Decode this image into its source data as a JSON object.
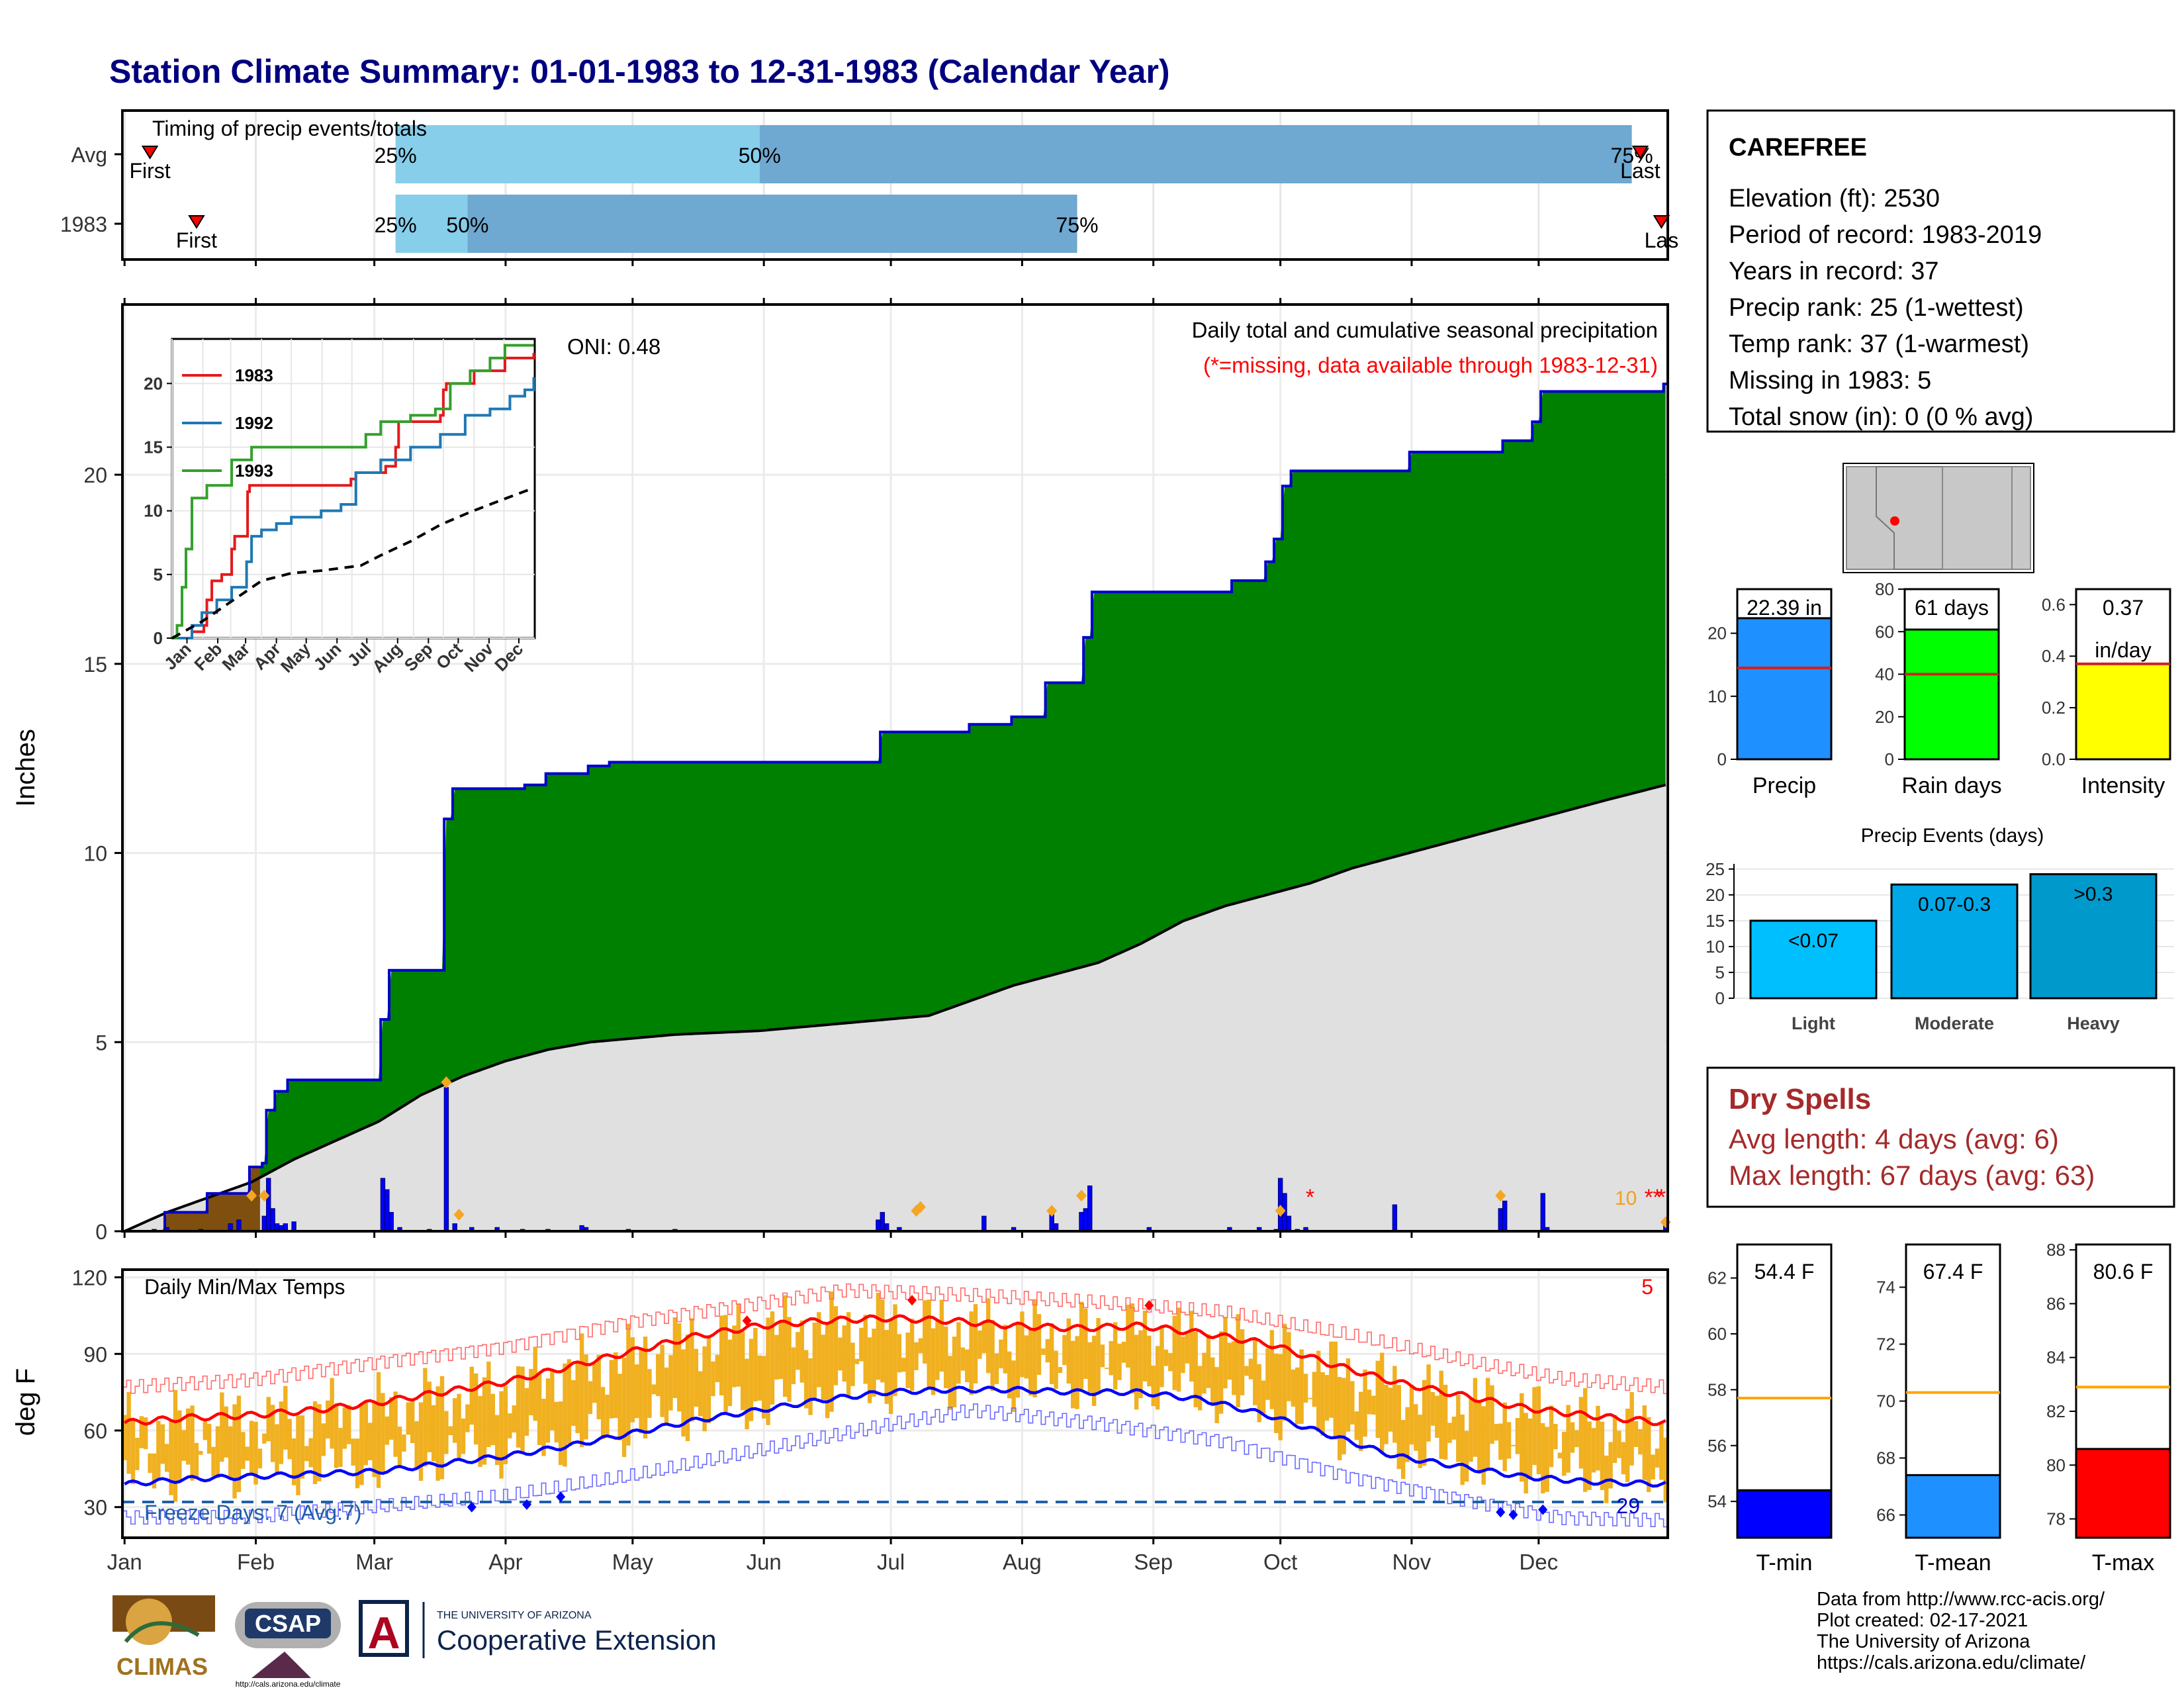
{
  "title": "Station Climate Summary: 01-01-1983 to 12-31-1983 (Calendar Year)",
  "colors": {
    "title": "#00007f",
    "green": "#008000",
    "brown": "#7f4f0f",
    "blue_bar": "#0000ff",
    "gray": "#e0e0e0",
    "orange": "#f0b020",
    "red": "#ff0000",
    "navy": "#0000cc",
    "light_blue": "#87ceeb",
    "steel_blue": "#6fa8d0",
    "dry_red": "#a52a2a"
  },
  "months": [
    "Jan",
    "Feb",
    "Mar",
    "Apr",
    "May",
    "Jun",
    "Jul",
    "Aug",
    "Sep",
    "Oct",
    "Nov",
    "Dec"
  ],
  "timing": {
    "title": "Timing of precip events/totals",
    "rows": [
      {
        "label": "Avg",
        "first_label": "First",
        "last_label": "Last",
        "first_doy": 6,
        "last_doy": 358,
        "q25_label": "25%",
        "q50_label": "50%",
        "q75_label": "75%",
        "q25": 64,
        "q50": 150,
        "q75": 356
      },
      {
        "label": "1983",
        "first_label": "First",
        "last_label": "Las",
        "first_doy": 17,
        "last_doy": 363,
        "q25_label": "25%",
        "q50_label": "50%",
        "q75_label": "75%",
        "q25": 64,
        "q50": 81,
        "q75": 225
      }
    ]
  },
  "precip": {
    "ylabel": "Inches",
    "yticks": [
      0,
      5,
      10,
      15,
      20
    ],
    "ylim": [
      0,
      24.5
    ],
    "subtitle": "Daily total and cumulative seasonal precipitation",
    "missing_note": "(*=missing, data available through 1983-12-31)",
    "oni_label": "ONI: 0.48",
    "missing_count_label": "10",
    "cumulative_1983": [
      [
        0,
        0
      ],
      [
        10,
        0.5
      ],
      [
        20,
        1
      ],
      [
        30,
        1.7
      ],
      [
        33,
        1.8
      ],
      [
        34,
        3.2
      ],
      [
        36,
        3.7
      ],
      [
        39,
        4
      ],
      [
        60,
        4
      ],
      [
        61,
        5.6
      ],
      [
        63,
        6.9
      ],
      [
        75,
        6.9
      ],
      [
        76,
        10.9
      ],
      [
        78,
        11.7
      ],
      [
        95,
        11.8
      ],
      [
        100,
        12.1
      ],
      [
        110,
        12.3
      ],
      [
        115,
        12.4
      ],
      [
        177,
        12.4
      ],
      [
        179,
        13.2
      ],
      [
        195,
        13.2
      ],
      [
        200,
        13.4
      ],
      [
        210,
        13.6
      ],
      [
        215,
        13.6
      ],
      [
        218,
        14.5
      ],
      [
        225,
        14.5
      ],
      [
        227,
        15.7
      ],
      [
        229,
        16.9
      ],
      [
        255,
        16.9
      ],
      [
        262,
        17.2
      ],
      [
        270,
        17.7
      ],
      [
        272,
        18.3
      ],
      [
        274,
        19.7
      ],
      [
        276,
        20.1
      ],
      [
        302,
        20.1
      ],
      [
        304,
        20.6
      ],
      [
        324,
        20.6
      ],
      [
        326,
        20.9
      ],
      [
        333,
        21.4
      ],
      [
        335,
        22.2
      ],
      [
        348,
        22.2
      ],
      [
        364,
        22.4
      ]
    ],
    "cumulative_avg": [
      [
        0,
        0
      ],
      [
        10,
        0.5
      ],
      [
        20,
        0.9
      ],
      [
        30,
        1.3
      ],
      [
        40,
        1.9
      ],
      [
        50,
        2.4
      ],
      [
        60,
        2.9
      ],
      [
        70,
        3.6
      ],
      [
        80,
        4.1
      ],
      [
        90,
        4.5
      ],
      [
        100,
        4.8
      ],
      [
        110,
        5
      ],
      [
        120,
        5.1
      ],
      [
        130,
        5.2
      ],
      [
        150,
        5.3
      ],
      [
        170,
        5.5
      ],
      [
        190,
        5.7
      ],
      [
        200,
        6.1
      ],
      [
        210,
        6.5
      ],
      [
        220,
        6.8
      ],
      [
        230,
        7.1
      ],
      [
        240,
        7.6
      ],
      [
        250,
        8.2
      ],
      [
        260,
        8.6
      ],
      [
        270,
        8.9
      ],
      [
        280,
        9.2
      ],
      [
        290,
        9.6
      ],
      [
        300,
        9.9
      ],
      [
        310,
        10.2
      ],
      [
        320,
        10.5
      ],
      [
        330,
        10.8
      ],
      [
        340,
        11.1
      ],
      [
        350,
        11.4
      ],
      [
        364,
        11.8
      ]
    ],
    "daily": [
      [
        7,
        0.05
      ],
      [
        10,
        0.1
      ],
      [
        18,
        0.05
      ],
      [
        25,
        0.2
      ],
      [
        27,
        0.3
      ],
      [
        33,
        0.4
      ],
      [
        34,
        1.4
      ],
      [
        35,
        0.6
      ],
      [
        36,
        0.2
      ],
      [
        37,
        0.15
      ],
      [
        38,
        0.2
      ],
      [
        40,
        0.25
      ],
      [
        61,
        1.4
      ],
      [
        62,
        1.1
      ],
      [
        63,
        0.5
      ],
      [
        65,
        0.1
      ],
      [
        72,
        0.05
      ],
      [
        76,
        3.8
      ],
      [
        78,
        0.2
      ],
      [
        82,
        0.1
      ],
      [
        88,
        0.1
      ],
      [
        94,
        0.05
      ],
      [
        100,
        0.05
      ],
      [
        108,
        0.15
      ],
      [
        109,
        0.1
      ],
      [
        119,
        0.05
      ],
      [
        130,
        0.05
      ],
      [
        178,
        0.3
      ],
      [
        179,
        0.5
      ],
      [
        180,
        0.2
      ],
      [
        183,
        0.1
      ],
      [
        203,
        0.4
      ],
      [
        210,
        0.1
      ],
      [
        219,
        0.5
      ],
      [
        220,
        0.2
      ],
      [
        226,
        0.5
      ],
      [
        227,
        0.6
      ],
      [
        228,
        1.2
      ],
      [
        242,
        0.1
      ],
      [
        261,
        0.1
      ],
      [
        268,
        0.1
      ],
      [
        272,
        0.05
      ],
      [
        273,
        1.4
      ],
      [
        274,
        1.0
      ],
      [
        275,
        0.4
      ],
      [
        277,
        0.05
      ],
      [
        279,
        0.1
      ],
      [
        300,
        0.7
      ],
      [
        325,
        0.6
      ],
      [
        326,
        0.8
      ],
      [
        335,
        1.0
      ],
      [
        336,
        0.1
      ],
      [
        364,
        0.2
      ]
    ],
    "orange_diamonds": [
      [
        30,
        0.8
      ],
      [
        33,
        0.8
      ],
      [
        76,
        3.8
      ],
      [
        79,
        0.3
      ],
      [
        187,
        0.4
      ],
      [
        188,
        0.5
      ],
      [
        219,
        0.4
      ],
      [
        226,
        0.8
      ],
      [
        273,
        0.4
      ],
      [
        325,
        0.8
      ],
      [
        364,
        0.1
      ]
    ],
    "missing_marks": [
      280,
      360,
      362,
      363
    ]
  },
  "inset": {
    "series": [
      {
        "name": "1983",
        "color": "#e31a1c",
        "points": [
          [
            0,
            0
          ],
          [
            20,
            0.5
          ],
          [
            32,
            1
          ],
          [
            35,
            3
          ],
          [
            40,
            4.5
          ],
          [
            50,
            5
          ],
          [
            60,
            7
          ],
          [
            63,
            8
          ],
          [
            76,
            11.5
          ],
          [
            78,
            12
          ],
          [
            120,
            12
          ],
          [
            180,
            12.5
          ],
          [
            185,
            13
          ],
          [
            215,
            13.5
          ],
          [
            225,
            15
          ],
          [
            228,
            17
          ],
          [
            270,
            17.5
          ],
          [
            273,
            19.5
          ],
          [
            276,
            20
          ],
          [
            300,
            20
          ],
          [
            304,
            21
          ],
          [
            325,
            21
          ],
          [
            335,
            22
          ],
          [
            364,
            22.4
          ]
        ]
      },
      {
        "name": "1992",
        "color": "#1f78b4",
        "points": [
          [
            0,
            0
          ],
          [
            20,
            1
          ],
          [
            30,
            2
          ],
          [
            45,
            3
          ],
          [
            60,
            4
          ],
          [
            75,
            6
          ],
          [
            80,
            8
          ],
          [
            90,
            8.5
          ],
          [
            105,
            9
          ],
          [
            120,
            9.5
          ],
          [
            150,
            10
          ],
          [
            170,
            10.5
          ],
          [
            185,
            13
          ],
          [
            210,
            14
          ],
          [
            240,
            15
          ],
          [
            270,
            16
          ],
          [
            295,
            17.5
          ],
          [
            320,
            18
          ],
          [
            340,
            19
          ],
          [
            355,
            19.5
          ],
          [
            364,
            20.5
          ]
        ]
      },
      {
        "name": "1993",
        "color": "#33a02c",
        "points": [
          [
            0,
            0
          ],
          [
            5,
            1
          ],
          [
            10,
            4
          ],
          [
            14,
            7
          ],
          [
            20,
            11
          ],
          [
            35,
            12
          ],
          [
            60,
            14
          ],
          [
            80,
            15
          ],
          [
            100,
            15
          ],
          [
            180,
            15
          ],
          [
            195,
            16
          ],
          [
            210,
            17
          ],
          [
            240,
            17.5
          ],
          [
            265,
            18
          ],
          [
            280,
            20
          ],
          [
            300,
            21
          ],
          [
            320,
            22
          ],
          [
            335,
            23
          ],
          [
            364,
            23
          ]
        ]
      }
    ],
    "avg_points": [
      [
        0,
        0
      ],
      [
        30,
        1.3
      ],
      [
        60,
        2.9
      ],
      [
        90,
        4.5
      ],
      [
        120,
        5.1
      ],
      [
        150,
        5.3
      ],
      [
        190,
        5.7
      ],
      [
        210,
        6.5
      ],
      [
        240,
        7.6
      ],
      [
        270,
        8.9
      ],
      [
        300,
        9.9
      ],
      [
        330,
        10.8
      ],
      [
        364,
        11.8
      ]
    ],
    "yticks": [
      0,
      5,
      10,
      15,
      20
    ],
    "ylim": [
      0,
      23.5
    ]
  },
  "temps": {
    "ylabel": "deg F",
    "yticks": [
      30,
      60,
      90,
      120
    ],
    "ylim": [
      18,
      123
    ],
    "title": "Daily Min/Max Temps",
    "freeze_label": "Freeze Days: 7 (Avg:7)",
    "freeze_count": "29",
    "record_count": "5",
    "freeze_line": 32,
    "avg_max": [
      [
        0,
        63
      ],
      [
        15,
        65
      ],
      [
        30,
        66
      ],
      [
        45,
        68
      ],
      [
        60,
        71
      ],
      [
        75,
        75
      ],
      [
        90,
        79
      ],
      [
        105,
        85
      ],
      [
        120,
        91
      ],
      [
        135,
        97
      ],
      [
        150,
        101
      ],
      [
        165,
        103
      ],
      [
        180,
        104
      ],
      [
        195,
        103
      ],
      [
        210,
        101
      ],
      [
        225,
        100
      ],
      [
        240,
        101
      ],
      [
        255,
        98
      ],
      [
        270,
        94
      ],
      [
        285,
        86
      ],
      [
        300,
        79
      ],
      [
        315,
        74
      ],
      [
        330,
        69
      ],
      [
        345,
        66
      ],
      [
        364,
        63
      ]
    ],
    "avg_min": [
      [
        0,
        39
      ],
      [
        15,
        41
      ],
      [
        30,
        42
      ],
      [
        45,
        43
      ],
      [
        60,
        44
      ],
      [
        75,
        47
      ],
      [
        90,
        50
      ],
      [
        105,
        54
      ],
      [
        120,
        59
      ],
      [
        135,
        64
      ],
      [
        150,
        68
      ],
      [
        165,
        72
      ],
      [
        180,
        75
      ],
      [
        195,
        76
      ],
      [
        210,
        76
      ],
      [
        225,
        75
      ],
      [
        240,
        75
      ],
      [
        255,
        72
      ],
      [
        270,
        66
      ],
      [
        285,
        58
      ],
      [
        300,
        50
      ],
      [
        315,
        46
      ],
      [
        330,
        42
      ],
      [
        345,
        40
      ],
      [
        364,
        39
      ]
    ],
    "record_max": [
      [
        0,
        77
      ],
      [
        30,
        80
      ],
      [
        60,
        87
      ],
      [
        90,
        93
      ],
      [
        120,
        103
      ],
      [
        150,
        110
      ],
      [
        170,
        115
      ],
      [
        200,
        113
      ],
      [
        230,
        110
      ],
      [
        260,
        106
      ],
      [
        290,
        97
      ],
      [
        320,
        86
      ],
      [
        340,
        80
      ],
      [
        364,
        77
      ]
    ],
    "record_min": [
      [
        0,
        26
      ],
      [
        30,
        26
      ],
      [
        60,
        30
      ],
      [
        90,
        34
      ],
      [
        120,
        42
      ],
      [
        150,
        52
      ],
      [
        180,
        62
      ],
      [
        200,
        68
      ],
      [
        230,
        63
      ],
      [
        260,
        56
      ],
      [
        290,
        42
      ],
      [
        320,
        32
      ],
      [
        340,
        26
      ],
      [
        364,
        25
      ]
    ],
    "freeze_marks": [
      [
        82,
        30
      ],
      [
        95,
        31
      ],
      [
        103,
        34
      ],
      [
        325,
        28
      ],
      [
        328,
        27
      ],
      [
        335,
        29
      ]
    ],
    "hot_marks": [
      [
        147,
        103
      ],
      [
        186,
        111
      ],
      [
        242,
        109
      ]
    ]
  },
  "station": {
    "name": "CAREFREE",
    "lines": [
      "Elevation (ft): 2530",
      "Period of record: 1983-2019",
      "Years in record: 37",
      "Precip rank: 25 (1-wettest)",
      "Temp rank: 37 (1-warmest)",
      "Missing in 1983: 5",
      "Total snow (in): 0 (0 % avg)"
    ]
  },
  "gauges": [
    {
      "label": "Precip",
      "value_label": "22.39 in",
      "value": 22.39,
      "avg": 14.5,
      "ylim": [
        0,
        27
      ],
      "yticks": [
        0,
        10,
        20
      ],
      "color": "#1e90ff"
    },
    {
      "label": "Rain days",
      "value_label": "61 days",
      "value": 61,
      "avg": 40,
      "ylim": [
        0,
        80
      ],
      "yticks": [
        0,
        20,
        40,
        60,
        80
      ],
      "color": "#00ff00"
    },
    {
      "label": "Intensity",
      "value_label": "0.37",
      "value_label2": "in/day",
      "value": 0.37,
      "avg": 0.37,
      "ylim": [
        0,
        0.66
      ],
      "yticks": [
        "0.0",
        "0.2",
        "0.4",
        "0.6"
      ],
      "color": "#ffff00"
    }
  ],
  "events": {
    "title": "Precip Events (days)",
    "categories": [
      "Light",
      "Moderate",
      "Heavy"
    ],
    "range_labels": [
      "<0.07",
      "0.07-0.3",
      ">0.3"
    ],
    "values": [
      15,
      22,
      24
    ],
    "yticks": [
      0,
      5,
      10,
      15,
      20,
      25
    ],
    "colors": [
      "#00bfff",
      "#00a8e8",
      "#0099cc"
    ]
  },
  "dry": {
    "title": "Dry Spells",
    "line1": "Avg length: 4 days (avg: 6)",
    "line2": "Max length: 67 days (avg: 63)"
  },
  "temp_gauges": [
    {
      "label": "T-min",
      "value_label": "54.4 F",
      "value": 54.4,
      "avg": 57.7,
      "ylim": [
        52.7,
        63.2
      ],
      "yticks": [
        54,
        56,
        58,
        60,
        62
      ],
      "color": "#0000ff"
    },
    {
      "label": "T-mean",
      "value_label": "67.4 F",
      "value": 67.4,
      "avg": 70.3,
      "ylim": [
        65.2,
        75.5
      ],
      "yticks": [
        66,
        68,
        70,
        72,
        74
      ],
      "color": "#1e90ff"
    },
    {
      "label": "T-max",
      "value_label": "80.6 F",
      "value": 80.6,
      "avg": 82.9,
      "ylim": [
        77.3,
        88.2
      ],
      "yticks": [
        78,
        80,
        82,
        84,
        86,
        88
      ],
      "color": "#ff0000"
    }
  ],
  "footer": {
    "lines": [
      "Data from http://www.rcc-acis.org/",
      "Plot created: 02-17-2021",
      "The University of Arizona",
      "https://cals.arizona.edu/climate/"
    ],
    "climas": "CLIMAS",
    "csap": "CSAP",
    "csap_url": "http://cals.arizona.edu/climate",
    "ua_small": "THE UNIVERSITY OF ARIZONA",
    "ua_big": "Cooperative Extension",
    "ua_letter": "A"
  }
}
